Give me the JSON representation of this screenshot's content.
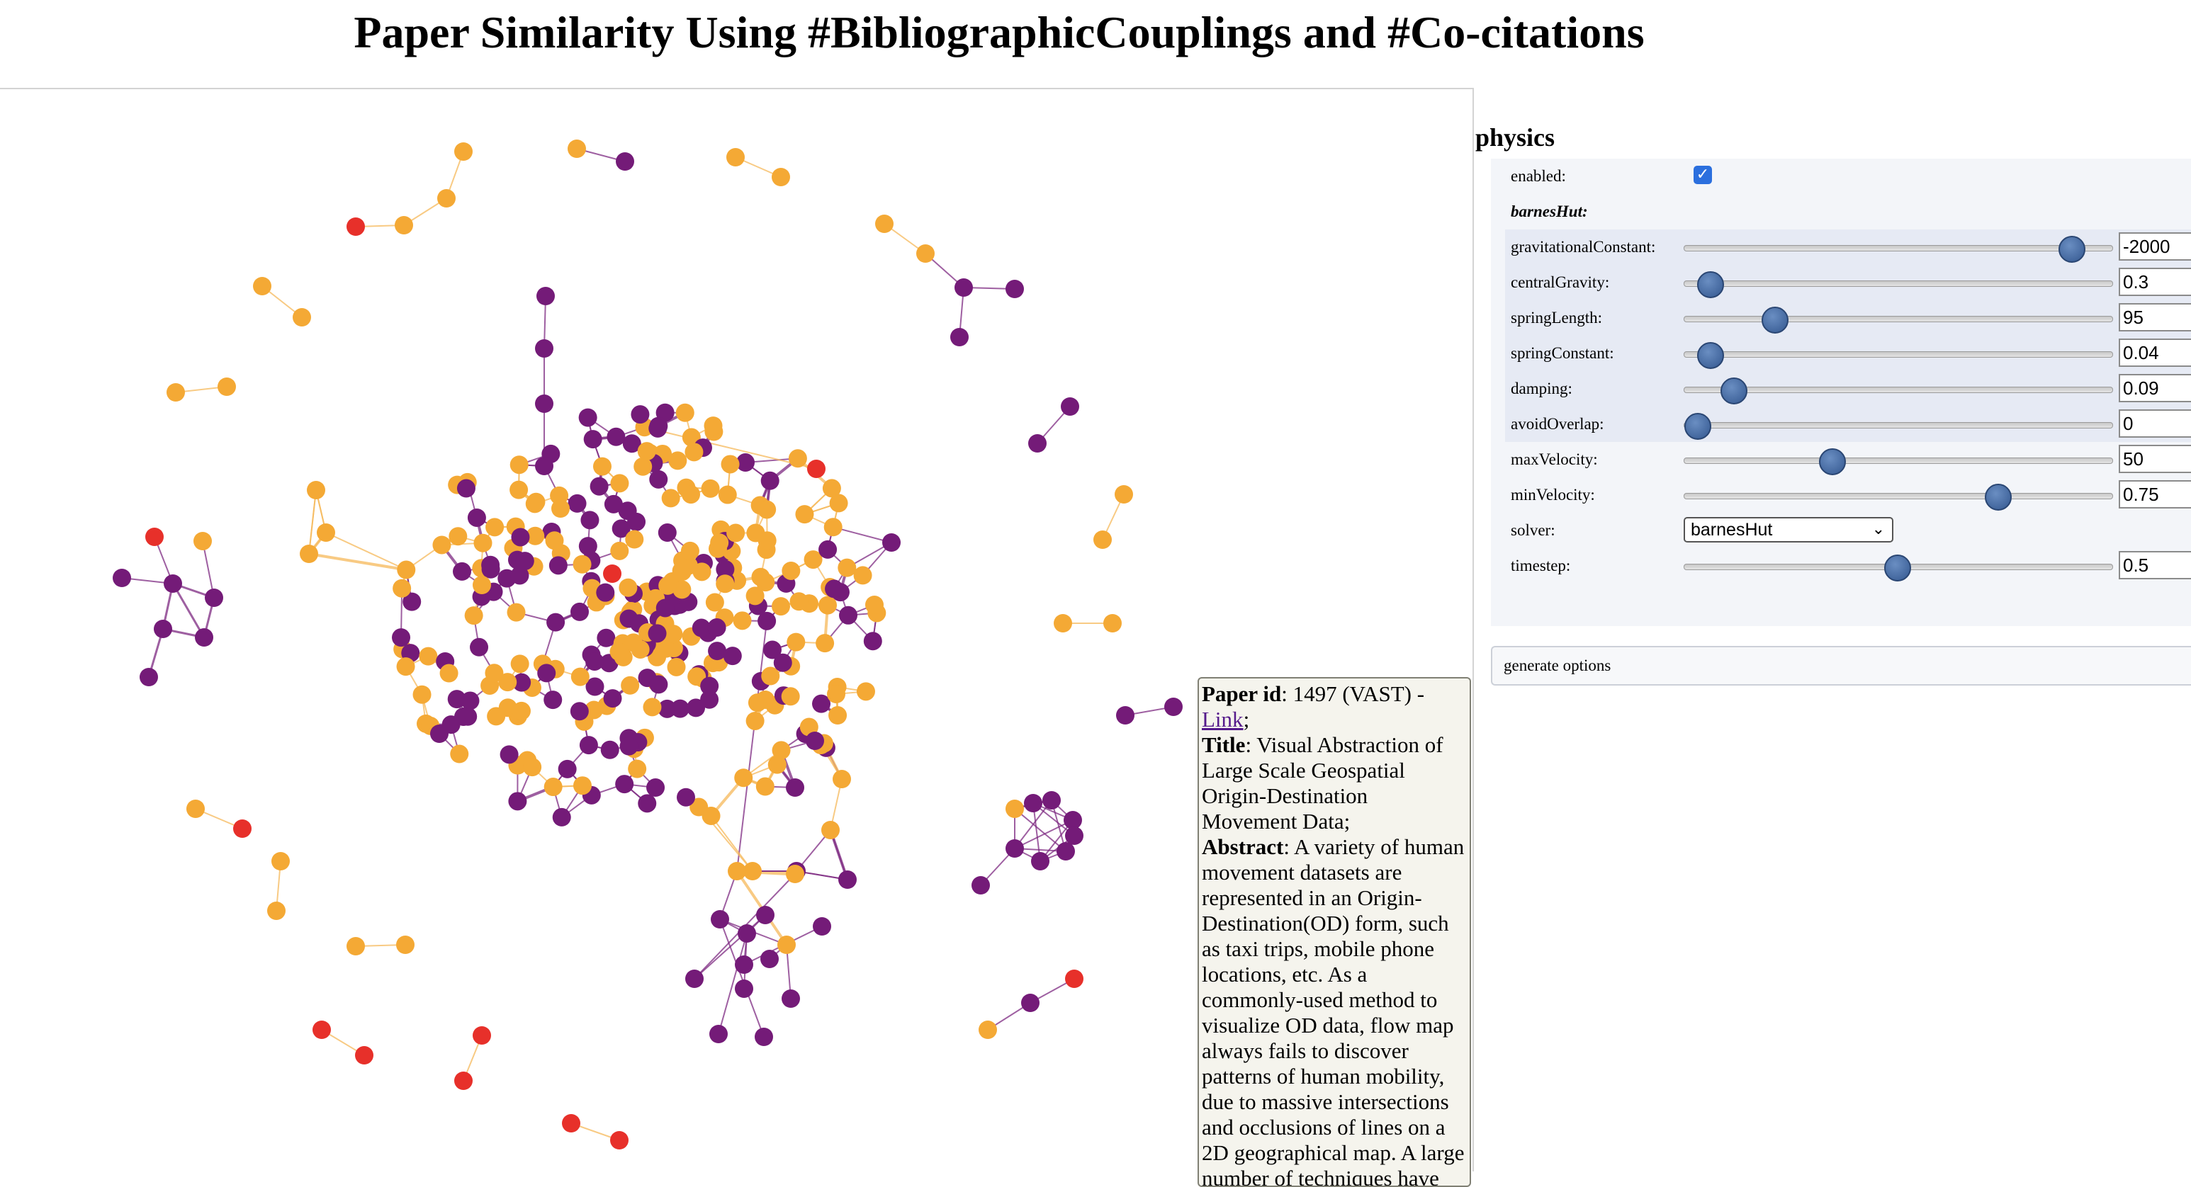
{
  "page": {
    "title": "Paper Similarity Using #BibliographicCouplings and #Co-citations"
  },
  "colors": {
    "node_orange": "#f4a935",
    "node_purple": "#741b78",
    "node_red": "#e7302a",
    "edge_orange": "#f6b85a",
    "edge_purple": "#7d2a82"
  },
  "tooltip": {
    "paper_id_label": "Paper id",
    "paper_id_value": ": 1497 (VAST) -",
    "link_text": "Link",
    "link_suffix": ";",
    "title_label": "Title",
    "title_value": ": Visual Abstraction of Large Scale Geospatial Origin-Destination Movement Data;",
    "abstract_label": "Abstract",
    "abstract_value": ": A variety of human movement datasets are represented in an Origin-Destination(OD) form, such as taxi trips, mobile phone locations, etc. As a commonly-used method to visualize OD data, flow map always fails to discover patterns of human mobility, due to massive intersections and occlusions of lines on a 2D geographical map. A large number of techniques have"
  },
  "physics": {
    "header": "physics",
    "enabled_label": "enabled:",
    "enabled_checked": true,
    "barneshut_label": "barnesHut:",
    "sub_options": [
      {
        "label": "gravitationalConstant:",
        "value": "-2000",
        "fraction": 0.902
      },
      {
        "label": "centralGravity:",
        "value": "0.3",
        "fraction": 0.058
      },
      {
        "label": "springLength:",
        "value": "95",
        "fraction": 0.208
      },
      {
        "label": "springConstant:",
        "value": "0.04",
        "fraction": 0.058
      },
      {
        "label": "damping:",
        "value": "0.09",
        "fraction": 0.113
      },
      {
        "label": "avoidOverlap:",
        "value": "0",
        "fraction": 0.028
      }
    ],
    "options": [
      {
        "label": "maxVelocity:",
        "value": "50",
        "fraction": 0.343
      },
      {
        "label": "minVelocity:",
        "value": "0.75",
        "fraction": 0.73
      }
    ],
    "solver_label": "solver:",
    "solver_value": "barnesHut",
    "timestep_label": "timestep:",
    "timestep_value": "0.5",
    "timestep_fraction": 0.495,
    "generate_button": "generate options"
  }
}
